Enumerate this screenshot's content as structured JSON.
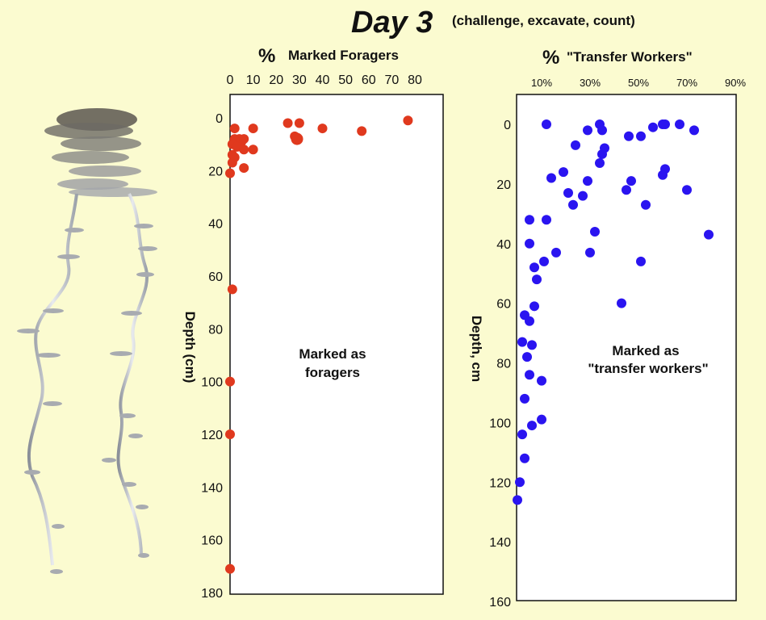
{
  "page": {
    "title": "Day 3",
    "subtitle": "(challenge, excavate, count)"
  },
  "colors": {
    "background": "#fbfbd0",
    "foragers": "#e0391e",
    "transfer": "#2a14f0"
  },
  "illustration": {
    "name": "ant nest cast"
  },
  "chart_data": [
    {
      "type": "scatter",
      "title_symbol": "%",
      "title": "Marked Foragers",
      "ylabel": "Depth (cm)",
      "annotation": [
        "Marked as",
        "foragers"
      ],
      "xlim": [
        0,
        90
      ],
      "ylim": [
        0,
        180
      ],
      "xticks": [
        0,
        10,
        20,
        30,
        40,
        50,
        60,
        70,
        80
      ],
      "xtick_labels": [
        "0",
        "10",
        "20",
        "30",
        "40",
        "50",
        "60",
        "70",
        "80"
      ],
      "yticks": [
        0,
        20,
        40,
        60,
        80,
        100,
        120,
        140,
        160,
        180
      ],
      "ytick_labels": [
        "0",
        "20",
        "40",
        "60",
        "80",
        "100",
        "120",
        "140",
        "160",
        "180"
      ],
      "x_pixel_range_note": "axis",
      "points": [
        {
          "x": 77,
          "y": 1
        },
        {
          "x": 25,
          "y": 2
        },
        {
          "x": 30,
          "y": 2
        },
        {
          "x": 40,
          "y": 4
        },
        {
          "x": 57,
          "y": 5
        },
        {
          "x": 10,
          "y": 4
        },
        {
          "x": 2,
          "y": 4
        },
        {
          "x": 28,
          "y": 7
        },
        {
          "x": 29,
          "y": 8
        },
        {
          "x": 2,
          "y": 8
        },
        {
          "x": 4,
          "y": 8
        },
        {
          "x": 5,
          "y": 9
        },
        {
          "x": 6,
          "y": 8
        },
        {
          "x": 1,
          "y": 10
        },
        {
          "x": 3,
          "y": 11
        },
        {
          "x": 6,
          "y": 12
        },
        {
          "x": 10,
          "y": 12
        },
        {
          "x": 1,
          "y": 14
        },
        {
          "x": 2,
          "y": 15
        },
        {
          "x": 1,
          "y": 17
        },
        {
          "x": 6,
          "y": 19
        },
        {
          "x": 0,
          "y": 21
        },
        {
          "x": 1,
          "y": 65
        },
        {
          "x": 0,
          "y": 100
        },
        {
          "x": 0,
          "y": 120
        },
        {
          "x": 0,
          "y": 171
        }
      ]
    },
    {
      "type": "scatter",
      "title_symbol": "%",
      "title": "\"Transfer Workers\"",
      "ylabel": "Depth, cm",
      "annotation": [
        "Marked as",
        "\"transfer workers\""
      ],
      "xlim": [
        0,
        90
      ],
      "ylim": [
        -5,
        160
      ],
      "xticks": [
        10,
        30,
        50,
        70,
        90
      ],
      "xtick_labels": [
        "10%",
        "30%",
        "50%",
        "70%",
        "90%"
      ],
      "yticks": [
        0,
        20,
        40,
        60,
        80,
        100,
        120,
        140,
        160
      ],
      "ytick_labels": [
        "0",
        "20",
        "40",
        "60",
        "80",
        "100",
        "120",
        "140",
        "160"
      ],
      "points": [
        {
          "x": 12,
          "y": 0
        },
        {
          "x": 34,
          "y": 0
        },
        {
          "x": 29,
          "y": 2
        },
        {
          "x": 35,
          "y": 2
        },
        {
          "x": 56,
          "y": 1
        },
        {
          "x": 60,
          "y": 0
        },
        {
          "x": 61,
          "y": 0
        },
        {
          "x": 67,
          "y": 0
        },
        {
          "x": 73,
          "y": 2
        },
        {
          "x": 46,
          "y": 4
        },
        {
          "x": 51,
          "y": 4
        },
        {
          "x": 24,
          "y": 7
        },
        {
          "x": 36,
          "y": 8
        },
        {
          "x": 35,
          "y": 10
        },
        {
          "x": 34,
          "y": 13
        },
        {
          "x": 61,
          "y": 15
        },
        {
          "x": 19,
          "y": 16
        },
        {
          "x": 60,
          "y": 17
        },
        {
          "x": 14,
          "y": 18
        },
        {
          "x": 29,
          "y": 19
        },
        {
          "x": 47,
          "y": 19
        },
        {
          "x": 45,
          "y": 22
        },
        {
          "x": 70,
          "y": 22
        },
        {
          "x": 21,
          "y": 23
        },
        {
          "x": 27,
          "y": 24
        },
        {
          "x": 23,
          "y": 27
        },
        {
          "x": 53,
          "y": 27
        },
        {
          "x": 5,
          "y": 32
        },
        {
          "x": 12,
          "y": 32
        },
        {
          "x": 32,
          "y": 36
        },
        {
          "x": 79,
          "y": 37
        },
        {
          "x": 5,
          "y": 40
        },
        {
          "x": 16,
          "y": 43
        },
        {
          "x": 30,
          "y": 43
        },
        {
          "x": 11,
          "y": 46
        },
        {
          "x": 51,
          "y": 46
        },
        {
          "x": 7,
          "y": 48
        },
        {
          "x": 8,
          "y": 52
        },
        {
          "x": 43,
          "y": 60
        },
        {
          "x": 7,
          "y": 61
        },
        {
          "x": 3,
          "y": 64
        },
        {
          "x": 5,
          "y": 66
        },
        {
          "x": 2,
          "y": 73
        },
        {
          "x": 6,
          "y": 74
        },
        {
          "x": 4,
          "y": 78
        },
        {
          "x": 5,
          "y": 84
        },
        {
          "x": 10,
          "y": 86
        },
        {
          "x": 3,
          "y": 92
        },
        {
          "x": 10,
          "y": 99
        },
        {
          "x": 6,
          "y": 101
        },
        {
          "x": 2,
          "y": 104
        },
        {
          "x": 3,
          "y": 112
        },
        {
          "x": 1,
          "y": 120
        },
        {
          "x": 0,
          "y": 126
        }
      ]
    }
  ]
}
